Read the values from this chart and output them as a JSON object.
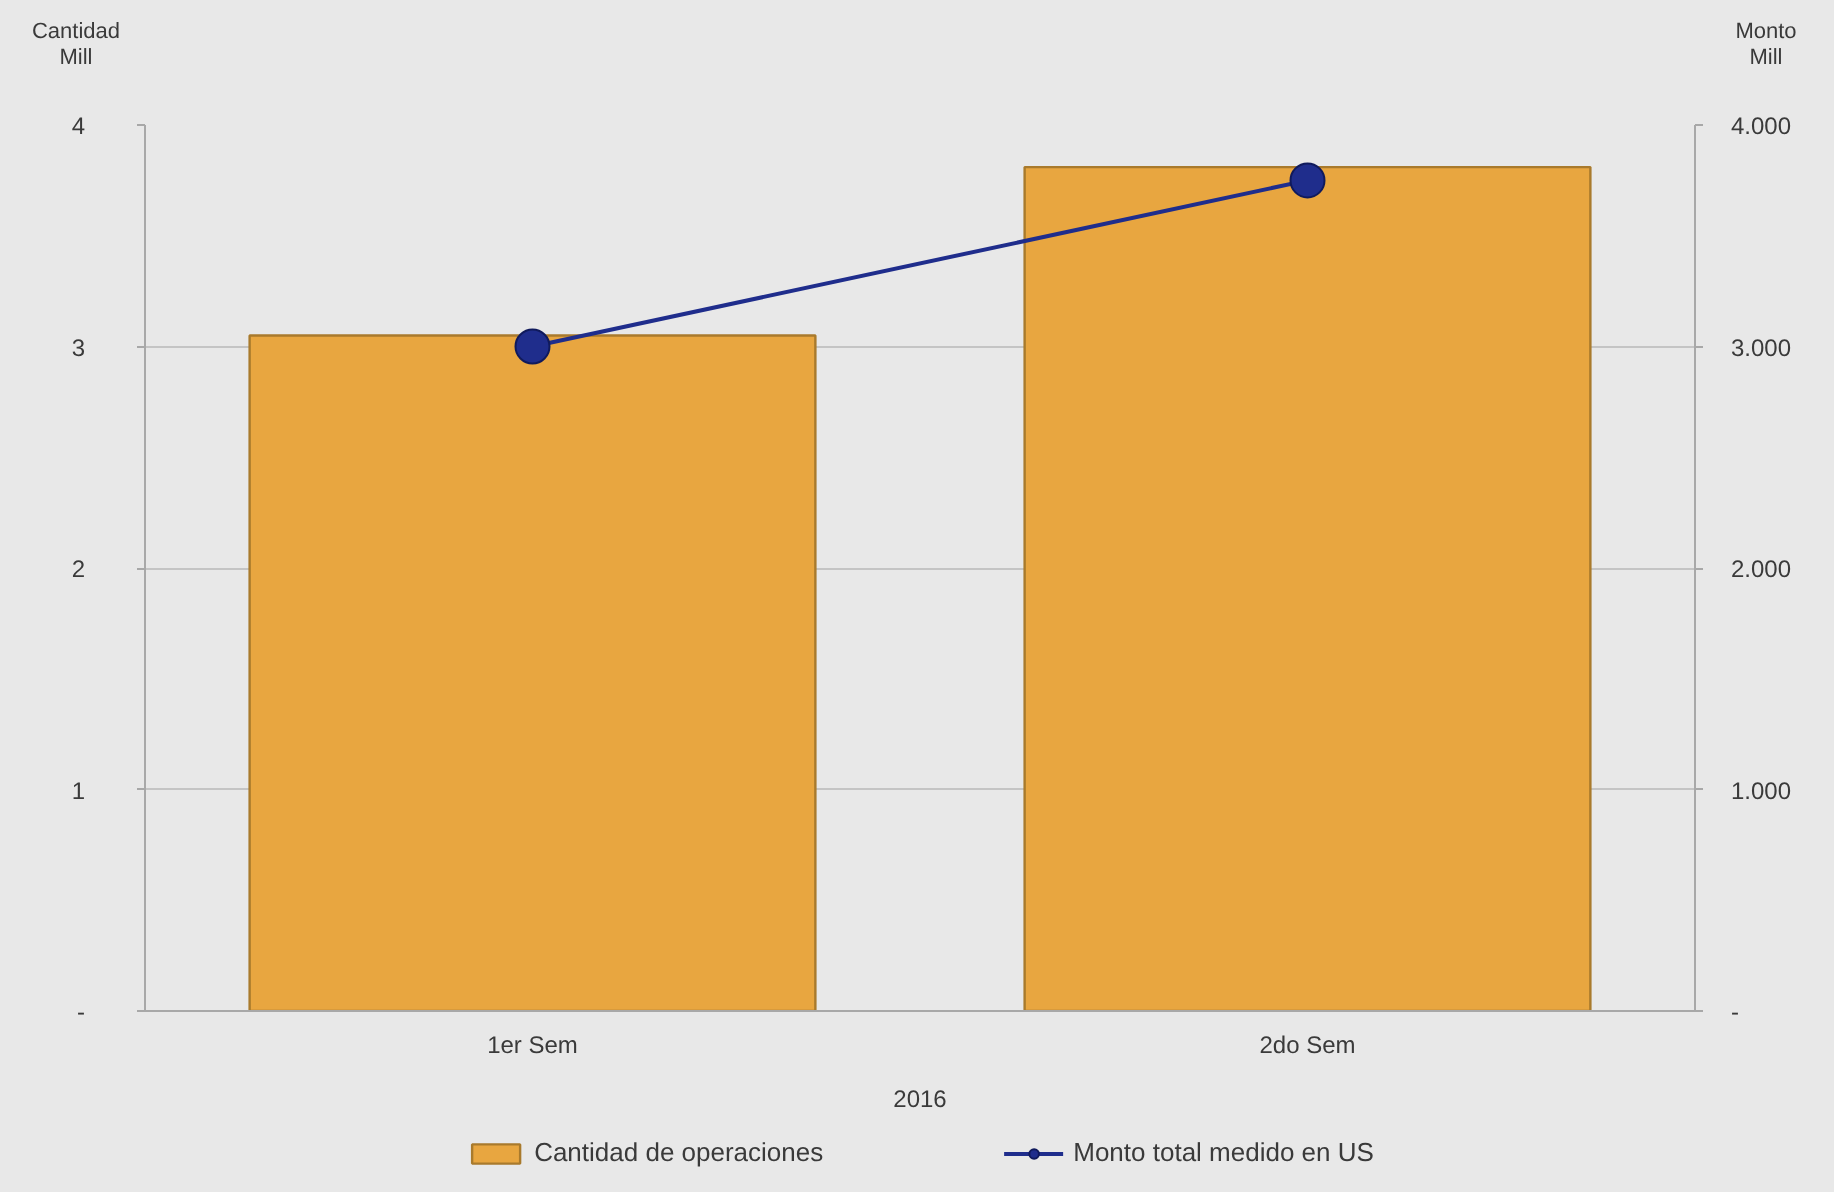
{
  "chart_data": {
    "type": "bar",
    "ylabel": "Cantidad Mill",
    "y2label": "Monto Mill",
    "xlabel": "2016",
    "categories": [
      "1er Sem",
      "2do Sem"
    ],
    "series": [
      {
        "name": "Cantidad de operaciones",
        "color": "#e8a640",
        "values": [
          3.05,
          3.81
        ]
      },
      {
        "name": "Monto total medido en US",
        "type": "line",
        "axis": "y2",
        "color": "#1f2d8c",
        "marker": "circle",
        "values": [
          3000,
          3750
        ]
      }
    ],
    "ylim": [
      0,
      4
    ],
    "yticks": [
      {
        "value": 0,
        "label": "-"
      },
      1,
      2,
      3,
      4
    ],
    "y2lim": [
      0,
      4000
    ],
    "y2ticks": [
      {
        "value": 0,
        "label": "-"
      },
      {
        "value": 1000,
        "label": "1.000"
      },
      {
        "value": 2000,
        "label": "2.000"
      },
      {
        "value": 3000,
        "label": "3.000"
      },
      {
        "value": 4000,
        "label": "4.000"
      }
    ],
    "grid": "y",
    "legend": "bottom"
  }
}
